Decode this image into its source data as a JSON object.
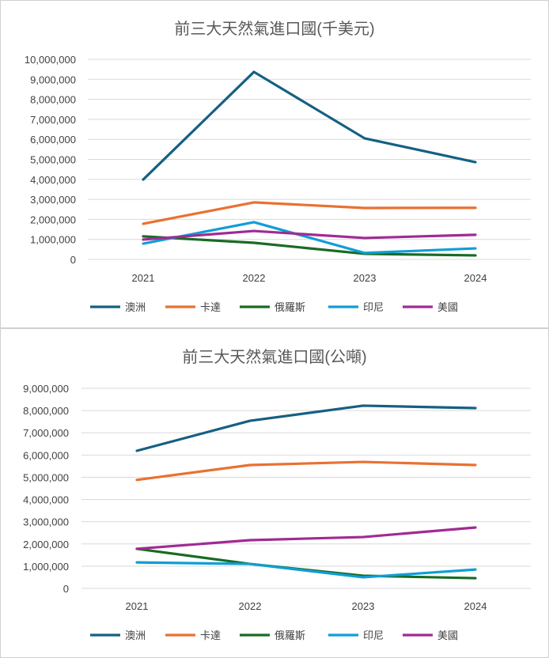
{
  "chart_data": [
    {
      "type": "line",
      "title": "前三大天然氣進口國(千美元)",
      "categories": [
        "2021",
        "2022",
        "2023",
        "2024"
      ],
      "ylim": [
        0,
        10000000
      ],
      "yticks": [
        "0",
        "1,000,000",
        "2,000,000",
        "3,000,000",
        "4,000,000",
        "5,000,000",
        "6,000,000",
        "7,000,000",
        "8,000,000",
        "9,000,000",
        "10,000,000"
      ],
      "grid": true,
      "legend": "bottom",
      "series": [
        {
          "name": "澳洲",
          "color": "#156082",
          "values": [
            3990000,
            9370000,
            6050000,
            4860000
          ]
        },
        {
          "name": "卡達",
          "color": "#E97132",
          "values": [
            1780000,
            2850000,
            2570000,
            2580000
          ]
        },
        {
          "name": "俄羅斯",
          "color": "#196B24",
          "values": [
            1150000,
            830000,
            280000,
            200000
          ]
        },
        {
          "name": "印尼",
          "color": "#0F9ED5",
          "values": [
            790000,
            1860000,
            320000,
            550000
          ]
        },
        {
          "name": "美國",
          "color": "#A02B93",
          "values": [
            990000,
            1420000,
            1070000,
            1230000
          ]
        }
      ]
    },
    {
      "type": "line",
      "title": "前三大天然氣進口國(公噸)",
      "categories": [
        "2021",
        "2022",
        "2023",
        "2024"
      ],
      "ylim": [
        0,
        9000000
      ],
      "yticks": [
        "0",
        "1,000,000",
        "2,000,000",
        "3,000,000",
        "4,000,000",
        "5,000,000",
        "6,000,000",
        "7,000,000",
        "8,000,000",
        "9,000,000"
      ],
      "grid": true,
      "legend": "bottom",
      "series": [
        {
          "name": "澳洲",
          "color": "#156082",
          "values": [
            6190000,
            7540000,
            8220000,
            8110000
          ]
        },
        {
          "name": "卡達",
          "color": "#E97132",
          "values": [
            4880000,
            5550000,
            5690000,
            5550000
          ]
        },
        {
          "name": "俄羅斯",
          "color": "#196B24",
          "values": [
            1780000,
            1100000,
            570000,
            460000
          ]
        },
        {
          "name": "印尼",
          "color": "#0F9ED5",
          "values": [
            1170000,
            1100000,
            500000,
            850000
          ]
        },
        {
          "name": "美國",
          "color": "#A02B93",
          "values": [
            1780000,
            2170000,
            2310000,
            2740000
          ]
        }
      ]
    }
  ]
}
